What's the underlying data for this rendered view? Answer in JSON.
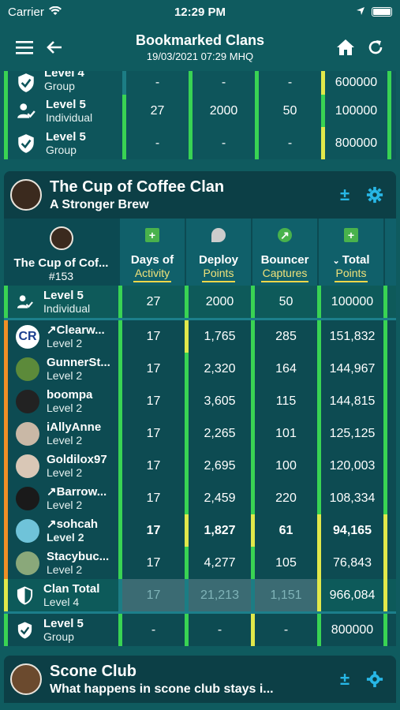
{
  "status": {
    "carrier": "Carrier",
    "time": "12:29 PM"
  },
  "header": {
    "title": "Bookmarked Clans",
    "subtitle": "19/03/2021 07:29 MHQ"
  },
  "top_rows": [
    {
      "title": "Level 4",
      "sub": "Group",
      "v1": "-",
      "v2": "-",
      "v3": "-",
      "v4": "600000"
    },
    {
      "title": "Level 5",
      "sub": "Individual",
      "v1": "27",
      "v2": "2000",
      "v3": "50",
      "v4": "100000"
    },
    {
      "title": "Level 5",
      "sub": "Group",
      "v1": "-",
      "v2": "-",
      "v3": "-",
      "v4": "800000"
    }
  ],
  "clan1": {
    "name": "The Cup of Coffee Clan",
    "tagline": "A Stronger Brew",
    "short_name": "The Cup of Cof...",
    "rank": "#153",
    "columns": [
      {
        "top": "Days of",
        "sub": "Activity"
      },
      {
        "top": "Deploy",
        "sub": "Points"
      },
      {
        "top": "Bouncer",
        "sub": "Captures"
      },
      {
        "top": "Total",
        "sub": "Points"
      }
    ],
    "requirement": {
      "title": "Level 5",
      "sub": "Individual",
      "v1": "27",
      "v2": "2000",
      "v3": "50",
      "v4": "100000"
    },
    "members": [
      {
        "name": "↗Clearw...",
        "level": "Level 2",
        "v1": "17",
        "v2": "1,765",
        "v3": "285",
        "v4": "151,832"
      },
      {
        "name": "GunnerSt...",
        "level": "Level 2",
        "v1": "17",
        "v2": "2,320",
        "v3": "164",
        "v4": "144,967"
      },
      {
        "name": "boompa",
        "level": "Level 2",
        "v1": "17",
        "v2": "3,605",
        "v3": "115",
        "v4": "144,815"
      },
      {
        "name": "iAllyAnne",
        "level": "Level 2",
        "v1": "17",
        "v2": "2,265",
        "v3": "101",
        "v4": "125,125"
      },
      {
        "name": "Goldilox97",
        "level": "Level 2",
        "v1": "17",
        "v2": "2,695",
        "v3": "100",
        "v4": "120,003"
      },
      {
        "name": "↗Barrow...",
        "level": "Level 2",
        "v1": "17",
        "v2": "2,459",
        "v3": "220",
        "v4": "108,334"
      },
      {
        "name": "↗sohcah",
        "level": "Level 2",
        "v1": "17",
        "v2": "1,827",
        "v3": "61",
        "v4": "94,165"
      },
      {
        "name": "Stacybuc...",
        "level": "Level 2",
        "v1": "17",
        "v2": "4,277",
        "v3": "105",
        "v4": "76,843"
      }
    ],
    "total": {
      "title": "Clan Total",
      "sub": "Level 4",
      "v1": "17",
      "v2": "21,213",
      "v3": "1,151",
      "v4": "966,084"
    },
    "group_req": {
      "title": "Level 5",
      "sub": "Group",
      "v1": "-",
      "v2": "-",
      "v3": "-",
      "v4": "800000"
    }
  },
  "clan2": {
    "name": "Scone Club",
    "tagline": "What happens in scone club stays i..."
  },
  "colors": {
    "green": "#39d353",
    "yellow": "#e1e84a",
    "orange": "#ef8f26",
    "teal": "#0f5b5f",
    "accent": "#27b7e6"
  }
}
